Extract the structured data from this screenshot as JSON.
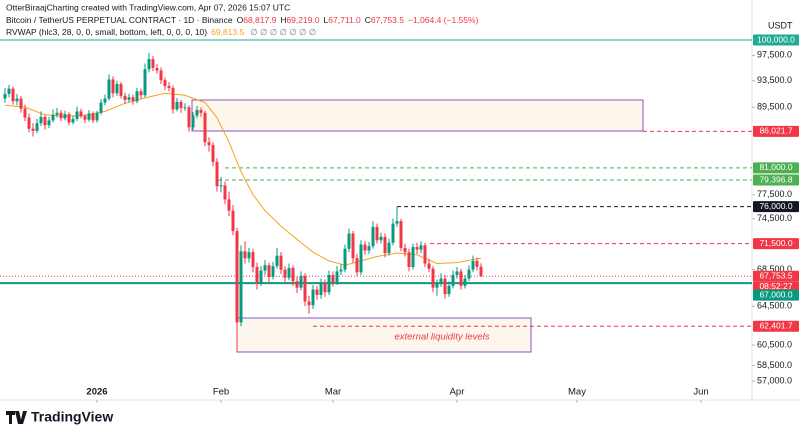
{
  "header": {
    "credit": "OtterBiraajCharting created with TradingView.com, Apr 07, 2026 15:07 UTC",
    "ohlc": [
      {
        "label": "O",
        "value": "68,817.9"
      },
      {
        "label": "H",
        "value": "69,219.0"
      },
      {
        "label": "L",
        "value": "67,711.0"
      },
      {
        "label": "C",
        "value": "67,753.5"
      }
    ],
    "change": "−1,064.4 (−1.55%)",
    "indicator_value": "69,813.5",
    "flags": "∅ ∅ ∅ ∅ ∅ ∅ ∅",
    "currency": "USDT"
  },
  "branding": {
    "logo": "TradingView"
  },
  "chart_data": {
    "type": "candlestick",
    "title": "Bitcoin / TetherUS PERPETUAL CONTRACT · 1D · Binance",
    "annotation": "external liquidity levels",
    "log_scale": true,
    "grid": false,
    "xlim": [
      -24.25,
      163.75
    ],
    "xticks": [
      {
        "value": 0,
        "label": "2026"
      },
      {
        "value": 31,
        "label": "Feb"
      },
      {
        "value": 59,
        "label": "Mar"
      },
      {
        "value": 90,
        "label": "Apr"
      },
      {
        "value": 120,
        "label": "May"
      },
      {
        "value": 151,
        "label": "Jun"
      }
    ],
    "ylim": [
      55720,
      104721
    ],
    "yticks": [
      {
        "value": 57000,
        "label": "57,000.0"
      },
      {
        "value": 58500,
        "label": "58,500.0"
      },
      {
        "value": 60500,
        "label": "60,500.0"
      },
      {
        "value": 64500,
        "label": "64,500.0"
      },
      {
        "value": 68500,
        "label": "68,500.0"
      },
      {
        "value": 74500,
        "label": "74,500.0"
      },
      {
        "value": 77500,
        "label": "77,500.0"
      },
      {
        "value": 89500,
        "label": "89,500.0"
      },
      {
        "value": 93500,
        "label": "93,500.0"
      },
      {
        "value": 97500,
        "label": "97,500.0"
      }
    ],
    "levels": [
      {
        "value": 100000,
        "label": "100,000.0",
        "color": "#22ab94",
        "style": "solid"
      },
      {
        "value": 86021.7,
        "label": "86,021.7",
        "color": "#f23645",
        "style": "dashed"
      },
      {
        "value": 81000,
        "label": "81,000.0",
        "color": "#4caf50",
        "style": "dashed"
      },
      {
        "value": 79396.8,
        "label": "79,396.8",
        "color": "#4caf50",
        "style": "dashed"
      },
      {
        "value": 76000,
        "label": "76,000.0",
        "color": "#131722",
        "style": "dashed"
      },
      {
        "value": 71500,
        "label": "71,500.0",
        "color": "#f23645",
        "style": "dashed"
      },
      {
        "value": 67753.5,
        "label": "67,753.5",
        "color": "#f23645",
        "style": "dotted",
        "countdown": "08:52:27"
      },
      {
        "value": 67000,
        "label": "67,000.0",
        "color": "#089981",
        "style": "solid"
      },
      {
        "value": 62401.7,
        "label": "62,401.7",
        "color": "#f23645",
        "style": "dashed"
      }
    ],
    "series": [
      {
        "type": "candlestick",
        "up_color": "#089981",
        "down_color": "#f23645",
        "x": [
          -23,
          -22,
          -21,
          -20,
          -19,
          -18,
          -17,
          -16,
          -15,
          -14,
          -13,
          -12,
          -11,
          -10,
          -9,
          -8,
          -7,
          -6,
          -5,
          -4,
          -3,
          -2,
          -1,
          0,
          1,
          2,
          3,
          4,
          5,
          6,
          7,
          8,
          9,
          10,
          11,
          12,
          13,
          14,
          15,
          16,
          17,
          18,
          19,
          20,
          21,
          22,
          23,
          24,
          25,
          26,
          27,
          28,
          29,
          30,
          31,
          32,
          33,
          34,
          35,
          36,
          37,
          38,
          39,
          40,
          41,
          42,
          43,
          44,
          45,
          46,
          47,
          48,
          49,
          50,
          51,
          52,
          53,
          54,
          55,
          56,
          57,
          58,
          59,
          60,
          61,
          62,
          63,
          64,
          65,
          66,
          67,
          68,
          69,
          70,
          71,
          72,
          73,
          74,
          75,
          76,
          77,
          78,
          79,
          80,
          81,
          82,
          83,
          84,
          85,
          86,
          87,
          88,
          89,
          90,
          91,
          92,
          93,
          94,
          95,
          96
        ],
        "ohlc": [
          [
            90800,
            92400,
            90200,
            91500
          ],
          [
            91500,
            92900,
            91000,
            92300
          ],
          [
            92300,
            92600,
            89900,
            90400
          ],
          [
            90400,
            91500,
            89800,
            90800
          ],
          [
            90800,
            91200,
            88700,
            89300
          ],
          [
            89300,
            89900,
            87500,
            88000
          ],
          [
            88000,
            88600,
            85900,
            86400
          ],
          [
            86400,
            87200,
            85300,
            86100
          ],
          [
            86100,
            87800,
            85800,
            87200
          ],
          [
            87200,
            88900,
            86800,
            88100
          ],
          [
            88100,
            88400,
            86300,
            86900
          ],
          [
            86900,
            88100,
            86500,
            87600
          ],
          [
            87600,
            89200,
            87300,
            88400
          ],
          [
            88400,
            89400,
            88000,
            88700
          ],
          [
            88700,
            89100,
            87500,
            87900
          ],
          [
            87900,
            89000,
            87600,
            88500
          ],
          [
            88500,
            88800,
            86900,
            87300
          ],
          [
            87300,
            88300,
            87000,
            87800
          ],
          [
            87800,
            89600,
            87500,
            88900
          ],
          [
            88900,
            89300,
            87900,
            88200
          ],
          [
            88200,
            88500,
            87200,
            87700
          ],
          [
            87700,
            89100,
            87400,
            88600
          ],
          [
            88600,
            88900,
            87200,
            87600
          ],
          [
            87600,
            89000,
            87300,
            88700
          ],
          [
            88700,
            90700,
            88400,
            90200
          ],
          [
            90200,
            91400,
            89800,
            90800
          ],
          [
            90800,
            94500,
            90500,
            93700
          ],
          [
            93700,
            94200,
            91000,
            91600
          ],
          [
            91600,
            93500,
            91200,
            93000
          ],
          [
            93000,
            93300,
            90800,
            91200
          ],
          [
            91200,
            91700,
            90000,
            90600
          ],
          [
            90600,
            91500,
            90200,
            91000
          ],
          [
            91000,
            91400,
            89900,
            90400
          ],
          [
            90400,
            92400,
            90100,
            91900
          ],
          [
            91900,
            92300,
            90800,
            91300
          ],
          [
            91300,
            96200,
            91000,
            95300
          ],
          [
            95300,
            97900,
            94800,
            96900
          ],
          [
            96900,
            97400,
            95000,
            95500
          ],
          [
            95500,
            96100,
            94600,
            95100
          ],
          [
            95100,
            95600,
            93000,
            93600
          ],
          [
            93600,
            94000,
            92100,
            92700
          ],
          [
            92700,
            93300,
            91900,
            92400
          ],
          [
            92400,
            92800,
            88600,
            89200
          ],
          [
            89200,
            90900,
            88900,
            90300
          ],
          [
            90300,
            90600,
            88700,
            89400
          ],
          [
            89400,
            90100,
            89000,
            89500
          ],
          [
            89500,
            89800,
            86000,
            86600
          ],
          [
            86600,
            88800,
            86200,
            88300
          ],
          [
            88300,
            89700,
            87900,
            89100
          ],
          [
            89100,
            89500,
            88100,
            88700
          ],
          [
            88700,
            89000,
            83900,
            84500
          ],
          [
            84500,
            85200,
            83200,
            84100
          ],
          [
            84100,
            84500,
            81200,
            81800
          ],
          [
            81800,
            82300,
            77900,
            78600
          ],
          [
            78600,
            79800,
            77800,
            78700
          ],
          [
            78700,
            79200,
            76300,
            76900
          ],
          [
            76900,
            77900,
            74800,
            75500
          ],
          [
            75500,
            76200,
            72500,
            73000
          ],
          [
            73000,
            73400,
            60000,
            62800
          ],
          [
            62800,
            71300,
            62400,
            70600
          ],
          [
            70600,
            71800,
            69200,
            69800
          ],
          [
            69800,
            71000,
            69300,
            70500
          ],
          [
            70500,
            70900,
            68200,
            68800
          ],
          [
            68800,
            69300,
            66300,
            67000
          ],
          [
            67000,
            68900,
            66700,
            68400
          ],
          [
            68400,
            69600,
            67900,
            69000
          ],
          [
            69000,
            69300,
            67100,
            67700
          ],
          [
            67700,
            69400,
            67400,
            68900
          ],
          [
            68900,
            71000,
            68600,
            70100
          ],
          [
            70100,
            70500,
            68000,
            68500
          ],
          [
            68500,
            68900,
            67000,
            67600
          ],
          [
            67600,
            69200,
            67300,
            68700
          ],
          [
            68700,
            69000,
            66700,
            67200
          ],
          [
            67200,
            67700,
            65900,
            66500
          ],
          [
            66500,
            68300,
            66200,
            67800
          ],
          [
            67800,
            68100,
            64500,
            65000
          ],
          [
            65000,
            65600,
            63700,
            64600
          ],
          [
            64600,
            66800,
            64200,
            66300
          ],
          [
            66300,
            66700,
            65200,
            65700
          ],
          [
            65700,
            67500,
            65300,
            67000
          ],
          [
            67000,
            67400,
            65500,
            66000
          ],
          [
            66000,
            68400,
            65700,
            67900
          ],
          [
            67900,
            68300,
            66600,
            67100
          ],
          [
            67100,
            68900,
            66800,
            68300
          ],
          [
            68300,
            69100,
            67900,
            68500
          ],
          [
            68500,
            71400,
            68200,
            70900
          ],
          [
            70900,
            73300,
            70500,
            72700
          ],
          [
            72700,
            73000,
            69300,
            69800
          ],
          [
            69800,
            70300,
            67800,
            68200
          ],
          [
            68200,
            71900,
            67900,
            71400
          ],
          [
            71400,
            71800,
            70200,
            70700
          ],
          [
            70700,
            71700,
            70300,
            71200
          ],
          [
            71200,
            74200,
            70900,
            73500
          ],
          [
            73500,
            73900,
            71500,
            71900
          ],
          [
            71900,
            72800,
            71500,
            72300
          ],
          [
            72300,
            72700,
            69900,
            70400
          ],
          [
            70400,
            72100,
            70100,
            71600
          ],
          [
            71600,
            74500,
            71300,
            73900
          ],
          [
            73900,
            76000,
            73500,
            74200
          ],
          [
            74200,
            74500,
            70600,
            71000
          ],
          [
            71000,
            71500,
            70000,
            70500
          ],
          [
            70500,
            70900,
            68300,
            68800
          ],
          [
            68800,
            71500,
            68500,
            71100
          ],
          [
            71100,
            71600,
            70300,
            70800
          ],
          [
            70800,
            71800,
            70400,
            71300
          ],
          [
            71300,
            71600,
            68800,
            69200
          ],
          [
            69200,
            69700,
            68200,
            68600
          ],
          [
            68600,
            68900,
            66000,
            66500
          ],
          [
            66500,
            67400,
            65600,
            66900
          ],
          [
            66900,
            68100,
            66600,
            67500
          ],
          [
            67500,
            67900,
            65300,
            65800
          ],
          [
            65800,
            67200,
            65500,
            66700
          ],
          [
            66700,
            68400,
            66400,
            67900
          ],
          [
            67900,
            68800,
            67500,
            68300
          ],
          [
            68300,
            68600,
            66300,
            66700
          ],
          [
            66700,
            67900,
            66400,
            67500
          ],
          [
            67500,
            69000,
            67200,
            68500
          ],
          [
            68500,
            70100,
            68200,
            69500
          ],
          [
            69500,
            69900,
            68400,
            68817.9
          ],
          [
            68817.9,
            69219.0,
            67711.0,
            67753.5
          ]
        ]
      },
      {
        "type": "line",
        "name": "RVWAP (hlc3, 28, 0, 0, small, bottom, left, 0, 0, 0, 10)",
        "color": "#f7a21b",
        "x": [
          -23,
          -18,
          -13,
          -8,
          -3,
          2,
          7,
          12,
          17,
          22,
          27,
          30,
          33,
          36,
          39,
          42,
          46,
          50,
          54,
          58,
          62,
          66,
          70,
          75,
          80,
          85,
          90,
          96
        ],
        "values": [
          89800,
          89500,
          88400,
          88200,
          88300,
          88900,
          90100,
          90900,
          91600,
          91300,
          90200,
          88000,
          84500,
          80500,
          77500,
          75500,
          73600,
          72000,
          70500,
          69500,
          69000,
          69500,
          70000,
          70400,
          70200,
          69200,
          69300,
          69813.5
        ]
      }
    ]
  }
}
